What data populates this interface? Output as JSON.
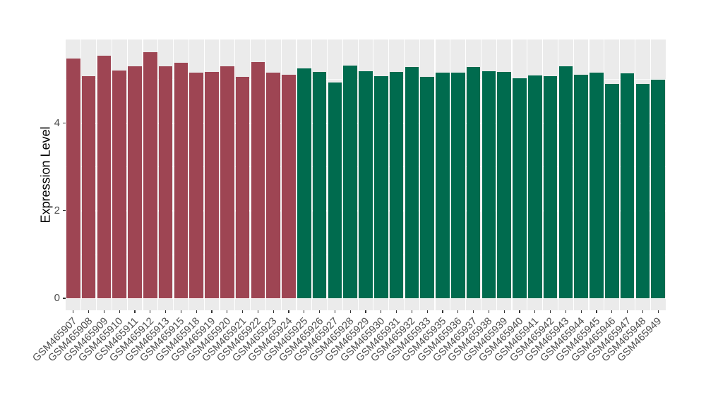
{
  "figure": {
    "title": "",
    "panel_background": "#EBEBEB",
    "grid_color": "#FFFFFF",
    "axis_text_color": "#4D4D4D",
    "axis_title_color": "#000000",
    "tick_mark_color": "#333333"
  },
  "y_axis": {
    "title": "Expression Level",
    "tick_labels": [
      "0",
      "2",
      "4"
    ]
  },
  "chart_data": {
    "type": "bar",
    "title": "",
    "xlabel": "",
    "ylabel": "Expression Level",
    "legend": "none",
    "grid": "white major gridlines at 0/2/4, white minor gridlines at 1/3/5, vertical white lines between category slots, on light gray panel",
    "ylim": [
      -0.28,
      5.92
    ],
    "yticks": [
      0,
      2,
      4
    ],
    "minor_gridlines": [
      1,
      3,
      5
    ],
    "categories": [
      "GSM465907",
      "GSM465908",
      "GSM465909",
      "GSM465910",
      "GSM465911",
      "GSM465912",
      "GSM465913",
      "GSM465915",
      "GSM465918",
      "GSM465919",
      "GSM465920",
      "GSM465921",
      "GSM465922",
      "GSM465923",
      "GSM465924",
      "GSM465925",
      "GSM465926",
      "GSM465927",
      "GSM465928",
      "GSM465929",
      "GSM465930",
      "GSM465931",
      "GSM465932",
      "GSM465933",
      "GSM465935",
      "GSM465936",
      "GSM465937",
      "GSM465938",
      "GSM465939",
      "GSM465940",
      "GSM465941",
      "GSM465942",
      "GSM465943",
      "GSM465944",
      "GSM465945",
      "GSM465946",
      "GSM465947",
      "GSM465948",
      "GSM465949"
    ],
    "values": [
      5.48,
      5.07,
      5.54,
      5.21,
      5.31,
      5.63,
      5.3,
      5.39,
      5.16,
      5.17,
      5.3,
      5.06,
      5.4,
      5.16,
      5.11,
      5.25,
      5.17,
      4.93,
      5.32,
      5.19,
      5.08,
      5.17,
      5.29,
      5.06,
      5.15,
      5.16,
      5.28,
      5.19,
      5.18,
      5.03,
      5.1,
      5.08,
      5.31,
      5.11,
      5.15,
      4.9,
      5.14,
      4.9,
      5.0
    ],
    "groups": [
      {
        "name": "GSM465907-GSM465924",
        "color": "#9E4553"
      },
      {
        "name": "GSM465925-GSM465949",
        "color": "#006B4E"
      }
    ],
    "bar_group": [
      0,
      0,
      0,
      0,
      0,
      0,
      0,
      0,
      0,
      0,
      0,
      0,
      0,
      0,
      0,
      1,
      1,
      1,
      1,
      1,
      1,
      1,
      1,
      1,
      1,
      1,
      1,
      1,
      1,
      1,
      1,
      1,
      1,
      1,
      1,
      1,
      1,
      1,
      1
    ]
  }
}
